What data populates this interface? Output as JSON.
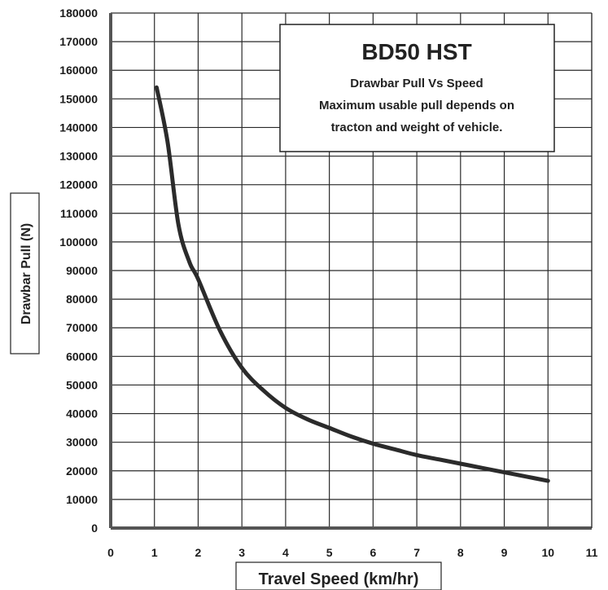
{
  "chart_data": {
    "type": "line",
    "title": "BD50 HST",
    "subtitle": "Drawbar Pull Vs Speed",
    "annotation_lines": [
      "Maximum usable pull depends on",
      "tracton and weight of vehicle."
    ],
    "xlabel": "Travel Speed (km/hr)",
    "ylabel": "Drawbar Pull (N)",
    "xlim": [
      0,
      11
    ],
    "ylim": [
      0,
      180000
    ],
    "x_ticks": [
      0,
      1,
      2,
      3,
      4,
      5,
      6,
      7,
      8,
      9,
      10,
      11
    ],
    "y_ticks": [
      0,
      10000,
      20000,
      30000,
      40000,
      50000,
      60000,
      70000,
      80000,
      90000,
      100000,
      110000,
      120000,
      130000,
      140000,
      150000,
      160000,
      170000,
      180000
    ],
    "grid": true,
    "series": [
      {
        "color": "#2b2b2b",
        "x": [
          1.05,
          1.3,
          1.55,
          1.8,
          2.0,
          2.5,
          3.0,
          3.5,
          4.0,
          4.5,
          5.0,
          5.5,
          6.0,
          6.5,
          7.0,
          7.5,
          8.0,
          8.5,
          9.0,
          9.5,
          10.0
        ],
        "y": [
          154000,
          135000,
          106000,
          93000,
          87000,
          69000,
          56000,
          48000,
          42000,
          38000,
          35000,
          32000,
          29500,
          27500,
          25500,
          24000,
          22500,
          21000,
          19500,
          18000,
          16500
        ]
      }
    ]
  }
}
